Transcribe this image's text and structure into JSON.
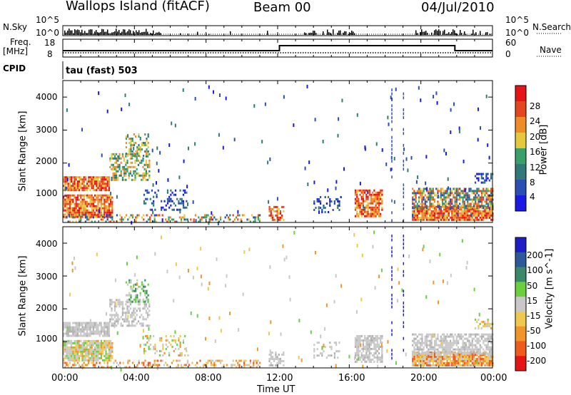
{
  "header": {
    "title": "Wallops Island (fitACF)",
    "beam": "Beam 00",
    "date": "04/Jul/2010"
  },
  "top_panels": {
    "nsky_label": "N.Sky",
    "nsky_ticks": [
      "10^5",
      "10^0"
    ],
    "nsearch_label": "N.Search",
    "nsearch_ticks": [
      "10^5",
      "10^0"
    ],
    "freq_label_1": "Freq.",
    "freq_label_2": "[MHz]",
    "freq_ticks": [
      "18",
      "8"
    ],
    "nave_label": "Nave",
    "nave_ticks": [
      "60",
      "0"
    ],
    "cpid_label": "CPID",
    "cpid_value": "tau (fast) 503"
  },
  "chart_data": [
    {
      "type": "heatmap",
      "name": "power",
      "ylabel": "Slant Range [km]",
      "y_ticks": [
        "1000",
        "2000",
        "3000",
        "4000"
      ],
      "ylim": [
        200,
        4500
      ],
      "xlim": [
        0,
        24
      ],
      "colorbar": {
        "label": "Power [dB]",
        "ticks": [
          "4",
          "8",
          "12",
          "16",
          "20",
          "24",
          "28"
        ],
        "colors": [
          "#1a1ae6",
          "#2a4fb4",
          "#2f7a78",
          "#3aa06a",
          "#e6c83c",
          "#f08c28",
          "#e6461e",
          "#e61414"
        ]
      }
    },
    {
      "type": "heatmap",
      "name": "velocity",
      "ylabel": "Slant Range [km]",
      "y_ticks": [
        "1000",
        "2000",
        "3000",
        "4000"
      ],
      "ylim": [
        200,
        4500
      ],
      "xlim": [
        0,
        24
      ],
      "colorbar": {
        "label": "Velocity [m s^-1]",
        "ticks": [
          "200",
          "100",
          "50",
          "15",
          "-15",
          "-50",
          "-100",
          "-200"
        ],
        "colors": [
          "#1e1ec8",
          "#2a5a9a",
          "#3a8a6a",
          "#6ad040",
          "#c8c8c8",
          "#f0c850",
          "#f09628",
          "#f05a1e",
          "#e61414"
        ]
      }
    }
  ],
  "time_axis": {
    "xlabel": "Time UT",
    "ticks": [
      "00:00",
      "04:00",
      "08:00",
      "12:00",
      "16:00",
      "20:00",
      "00:00"
    ]
  }
}
